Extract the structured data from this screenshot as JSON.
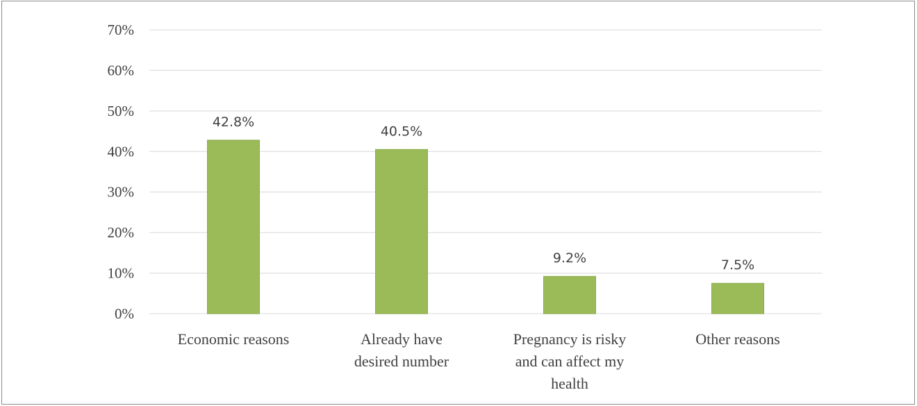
{
  "chart_data": {
    "type": "bar",
    "categories": [
      [
        "Economic reasons"
      ],
      [
        "Already have",
        "desired number"
      ],
      [
        "Pregnancy is risky",
        "and can affect my",
        "health"
      ],
      [
        "Other reasons"
      ]
    ],
    "values": [
      42.8,
      40.5,
      9.2,
      7.5
    ],
    "data_labels": [
      "42.8%",
      "40.5%",
      "9.2%",
      "7.5%"
    ],
    "y_ticks": [
      "0%",
      "10%",
      "20%",
      "30%",
      "40%",
      "50%",
      "60%",
      "70%"
    ],
    "ylim": [
      0,
      70
    ],
    "grid": true,
    "legend": "none",
    "colors": {
      "bar": "#9BBB59",
      "bar_edge": "#8aab4a",
      "grid": "#d9d9d9",
      "text": "#404040"
    }
  }
}
